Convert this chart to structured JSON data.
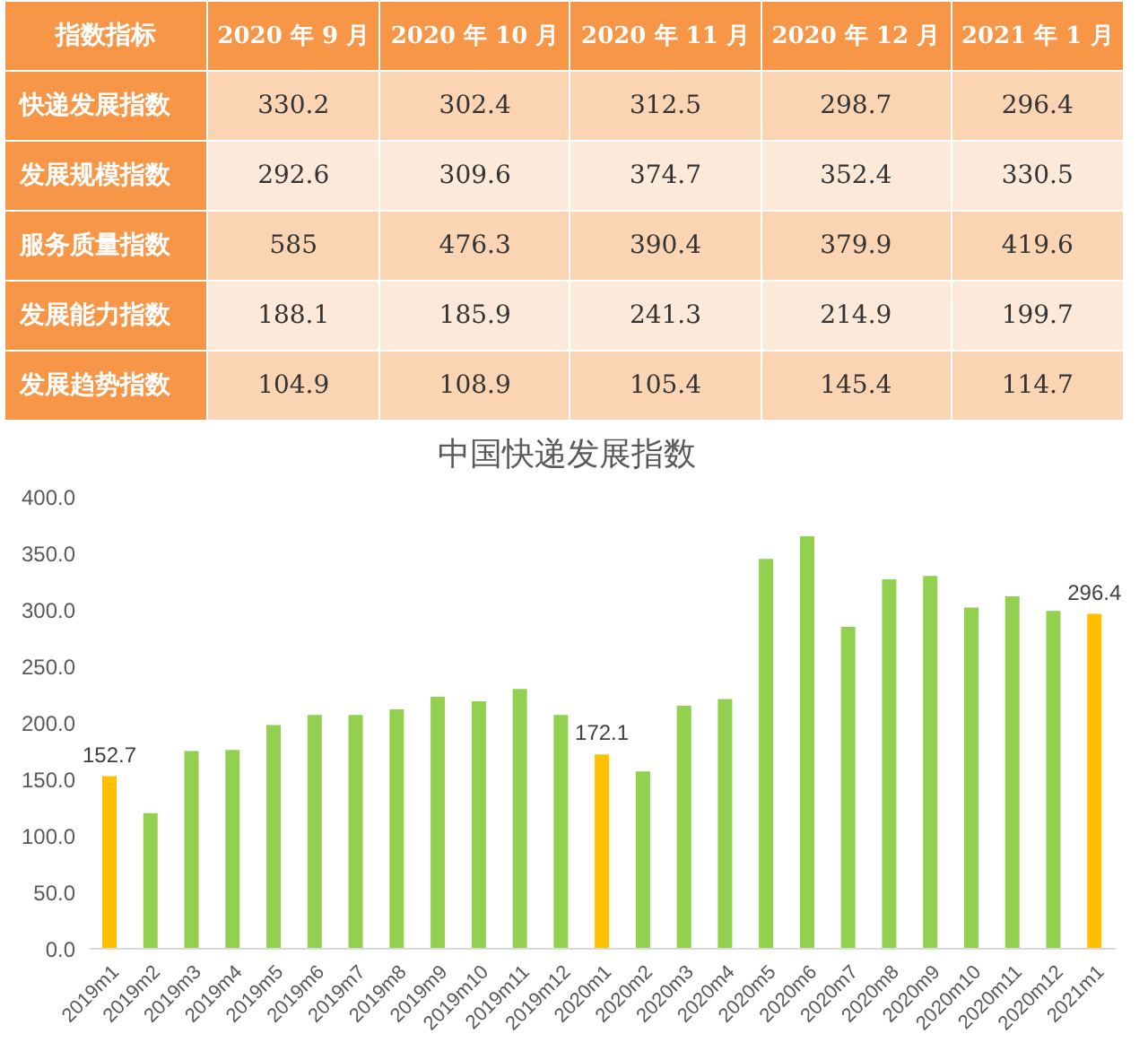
{
  "chart_data": [
    {
      "type": "heatmap",
      "ylabel": "指数指标",
      "categories": [
        "2020 年 9 月",
        "2020 年 10 月",
        "2020 年 11 月",
        "2020 年 12 月",
        "2021 年 1 月"
      ],
      "y_categories": [
        "快递发展指数",
        "发展规模指数",
        "服务质量指数",
        "发展能力指数",
        "发展趋势指数"
      ],
      "cells": [
        [
          330.2,
          302.4,
          312.5,
          298.7,
          296.4
        ],
        [
          292.6,
          309.6,
          374.7,
          352.4,
          330.5
        ],
        [
          585,
          476.3,
          390.4,
          379.9,
          419.6
        ],
        [
          188.1,
          185.9,
          241.3,
          214.9,
          199.7
        ],
        [
          104.9,
          108.9,
          105.4,
          145.4,
          114.7
        ]
      ],
      "data_labels": true
    },
    {
      "type": "bar",
      "title": "中国快递发展指数",
      "categories": [
        "2019m1",
        "2019m2",
        "2019m3",
        "2019m4",
        "2019m5",
        "2019m6",
        "2019m7",
        "2019m8",
        "2019m9",
        "2019m10",
        "2019m11",
        "2019m12",
        "2020m1",
        "2020m2",
        "2020m3",
        "2020m4",
        "2020m5",
        "2020m6",
        "2020m7",
        "2020m8",
        "2020m9",
        "2020m10",
        "2020m11",
        "2020m12",
        "2021m1"
      ],
      "values": [
        152.7,
        120,
        175,
        176,
        198,
        207,
        207,
        212,
        223,
        219,
        230,
        207,
        172.1,
        157,
        215,
        221,
        345,
        365,
        285,
        327,
        330,
        302,
        312,
        299,
        296.4
      ],
      "colors": [
        "#ffc000",
        "#92d050",
        "#92d050",
        "#92d050",
        "#92d050",
        "#92d050",
        "#92d050",
        "#92d050",
        "#92d050",
        "#92d050",
        "#92d050",
        "#92d050",
        "#ffc000",
        "#92d050",
        "#92d050",
        "#92d050",
        "#92d050",
        "#92d050",
        "#92d050",
        "#92d050",
        "#92d050",
        "#92d050",
        "#92d050",
        "#92d050",
        "#ffc000"
      ],
      "value_labels": [
        "152.7",
        null,
        null,
        null,
        null,
        null,
        null,
        null,
        null,
        null,
        null,
        null,
        "172.1",
        null,
        null,
        null,
        null,
        null,
        null,
        null,
        null,
        null,
        null,
        null,
        "296.4"
      ],
      "ylim": [
        0,
        400
      ],
      "yticks": [
        {
          "value": 0,
          "label": "0.0"
        },
        {
          "value": 50,
          "label": "50.0"
        },
        {
          "value": 100,
          "label": "100.0"
        },
        {
          "value": 150,
          "label": "150.0"
        },
        {
          "value": 200,
          "label": "200.0"
        },
        {
          "value": 250,
          "label": "250.0"
        },
        {
          "value": 300,
          "label": "300.0"
        },
        {
          "value": 350,
          "label": "350.0"
        },
        {
          "value": 400,
          "label": "400.0"
        }
      ],
      "grid": false,
      "legend": false
    }
  ]
}
